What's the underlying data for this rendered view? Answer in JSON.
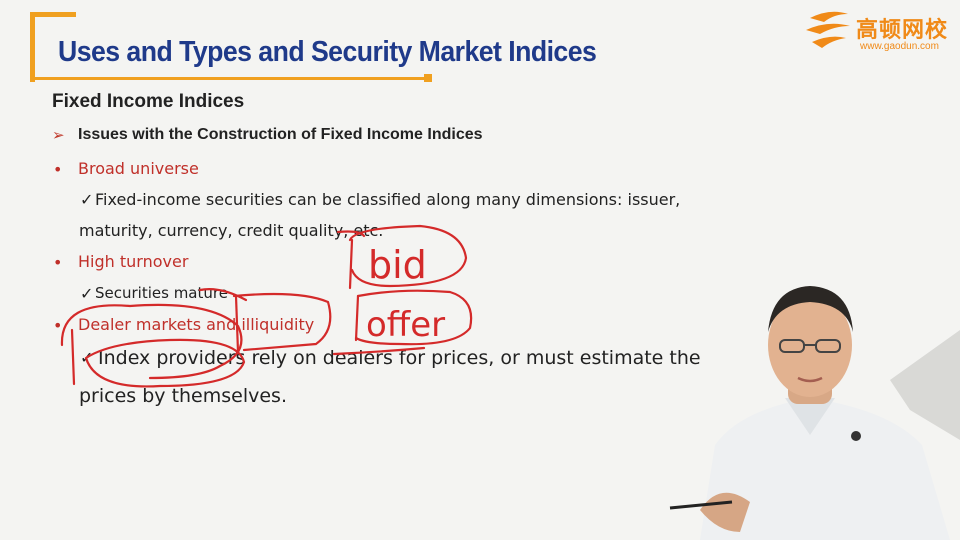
{
  "slide": {
    "title": "Uses and Types and Security Market Indices",
    "heading": "Fixed Income Indices",
    "subheading": "Issues with the Construction of Fixed Income Indices",
    "items": [
      {
        "label": "Broad universe",
        "detail_line1": "Fixed-income securities can be classified along many dimensions: issuer,",
        "detail_line2": "maturity, currency, credit quality, etc."
      },
      {
        "label": "High turnover",
        "detail_line1": "Securities mature"
      },
      {
        "label": "Dealer markets and illiquidity",
        "detail_line1": "Index providers rely on dealers for prices, or must estimate the",
        "detail_line2": "prices by themselves."
      }
    ],
    "check_mark": "✓",
    "arrow_mark": "➢",
    "bullet_mark": "•"
  },
  "logo": {
    "name": "高顿网校",
    "url": "www.gaodun.com"
  },
  "annotations": {
    "word1": "bid",
    "word2": "offer"
  },
  "colors": {
    "title": "#1f3a8a",
    "accent": "#f0a020",
    "bullet_red": "#c0302a",
    "ink": "#d42a2a",
    "logo": "#f08a18"
  }
}
